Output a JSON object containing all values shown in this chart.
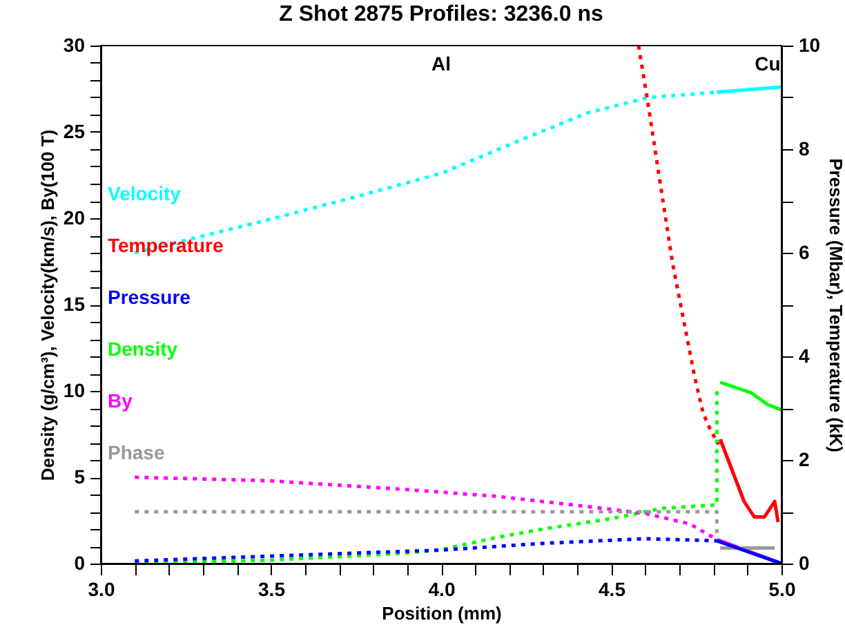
{
  "chart_data": {
    "type": "line",
    "title": "Z Shot 2875 Profiles: 3236.0 ns",
    "xlabel": "Position (mm)",
    "ylabel": "Density (g/cm³), Velocity(km/s), By(100 T)",
    "y2label": "Pressure (Mbar), Temperature (kK)",
    "xlim": [
      3.0,
      5.0
    ],
    "xticks": [
      {
        "value": 3,
        "label": "3.0"
      },
      {
        "value": 3.1,
        "label": null
      },
      {
        "value": 3.2,
        "label": null
      },
      {
        "value": 3.3,
        "label": null
      },
      {
        "value": 3.4,
        "label": null
      },
      {
        "value": 3.5,
        "label": "3.5"
      },
      {
        "value": 3.6,
        "label": null
      },
      {
        "value": 3.7,
        "label": null
      },
      {
        "value": 3.8,
        "label": null
      },
      {
        "value": 3.9,
        "label": null
      },
      {
        "value": 4,
        "label": "4.0"
      },
      {
        "value": 4.1,
        "label": null
      },
      {
        "value": 4.2,
        "label": null
      },
      {
        "value": 4.3,
        "label": null
      },
      {
        "value": 4.4,
        "label": null
      },
      {
        "value": 4.5,
        "label": "4.5"
      },
      {
        "value": 4.6,
        "label": null
      },
      {
        "value": 4.7,
        "label": null
      },
      {
        "value": 4.8,
        "label": null
      },
      {
        "value": 4.9,
        "label": null
      },
      {
        "value": 5,
        "label": "5.0"
      }
    ],
    "ylim": [
      0,
      30
    ],
    "yticks": [
      0,
      {
        "value": 1,
        "label": null
      },
      {
        "value": 2,
        "label": null
      },
      {
        "value": 3,
        "label": null
      },
      {
        "value": 4,
        "label": null
      },
      5,
      {
        "value": 6,
        "label": null
      },
      {
        "value": 7,
        "label": null
      },
      {
        "value": 8,
        "label": null
      },
      {
        "value": 9,
        "label": null
      },
      10,
      {
        "value": 11,
        "label": null
      },
      {
        "value": 12,
        "label": null
      },
      {
        "value": 13,
        "label": null
      },
      {
        "value": 14,
        "label": null
      },
      15,
      {
        "value": 16,
        "label": null
      },
      {
        "value": 17,
        "label": null
      },
      {
        "value": 18,
        "label": null
      },
      {
        "value": 19,
        "label": null
      },
      20,
      {
        "value": 21,
        "label": null
      },
      {
        "value": 22,
        "label": null
      },
      {
        "value": 23,
        "label": null
      },
      {
        "value": 24,
        "label": null
      },
      25,
      {
        "value": 26,
        "label": null
      },
      {
        "value": 27,
        "label": null
      },
      {
        "value": 28,
        "label": null
      },
      {
        "value": 29,
        "label": null
      },
      30
    ],
    "y2lim": [
      0,
      10
    ],
    "y2ticks": [
      0,
      {
        "value": 1,
        "label": null
      },
      2,
      {
        "value": 3,
        "label": null
      },
      4,
      {
        "value": 5,
        "label": null
      },
      6,
      {
        "value": 7,
        "label": null
      },
      8,
      {
        "value": 9,
        "label": null
      },
      10
    ],
    "grid": false,
    "legend": "left",
    "annotations": [
      "Al",
      "Cu"
    ],
    "series": [
      {
        "name": "Velocity",
        "color": "#00ffff",
        "line_style": "dotted",
        "x": [
          3.1,
          3.49,
          3.76,
          4.0,
          4.23,
          4.43,
          4.61,
          4.81
        ],
        "values": [
          18.0,
          19.9,
          21.3,
          22.6,
          24.5,
          26.1,
          27.0,
          27.3
        ]
      },
      {
        "color": "#00ffff",
        "line_style": "solid",
        "x": [
          4.81,
          5.0
        ],
        "values": [
          27.3,
          27.6
        ]
      },
      {
        "name": "Temperature",
        "color": "#ff0000",
        "line_style": "dotted",
        "axis": "y2",
        "x": [
          4.58,
          4.605,
          4.64,
          4.68,
          4.745,
          4.77,
          4.79,
          4.815
        ],
        "values": [
          10.0,
          9.0,
          7.5,
          5.8,
          3.6,
          2.9,
          2.6,
          2.3
        ]
      },
      {
        "color": "#ff0000",
        "line_style": "solid",
        "axis": "y2",
        "x": [
          4.82,
          4.89,
          4.92,
          4.95,
          4.98,
          4.99
        ],
        "values": [
          2.4,
          1.2,
          0.9,
          0.9,
          1.2,
          0.8
        ]
      },
      {
        "name": "Pressure",
        "color": "#0000ff",
        "line_style": "dotted",
        "axis": "y2",
        "x": [
          3.1,
          4.0,
          4.3,
          4.6,
          4.81
        ],
        "values": [
          0.05,
          0.26,
          0.39,
          0.48,
          0.44
        ]
      },
      {
        "color": "#0000ff",
        "line_style": "solid",
        "axis": "y2",
        "x": [
          4.81,
          5.0
        ],
        "values": [
          0.44,
          0.0
        ]
      },
      {
        "name": "Density",
        "color": "#00ff00",
        "line_style": "dotted",
        "x": [
          3.1,
          3.5,
          3.89,
          4.0,
          4.16,
          4.3,
          4.5,
          4.65,
          4.81,
          4.81
        ],
        "values": [
          0.0,
          0.2,
          0.6,
          0.8,
          1.5,
          2.0,
          2.6,
          3.2,
          3.4,
          10.3
        ]
      },
      {
        "color": "#00ff00",
        "line_style": "solid",
        "x": [
          4.82,
          4.91,
          4.96,
          5.0
        ],
        "values": [
          10.5,
          9.9,
          9.2,
          8.9
        ]
      },
      {
        "name": "By",
        "color": "#ff00ff",
        "line_style": "dotted",
        "x": [
          3.1,
          3.49,
          3.89,
          4.16,
          4.43,
          4.6,
          4.73,
          4.81
        ],
        "values": [
          5.0,
          4.8,
          4.3,
          3.9,
          3.3,
          2.9,
          2.3,
          1.4
        ]
      },
      {
        "color": "#ff00ff",
        "line_style": "solid",
        "x": [
          4.81,
          5.0
        ],
        "values": [
          1.4,
          0.0
        ]
      },
      {
        "name": "Phase",
        "color": "#999999",
        "line_style": "dotted",
        "x": [
          3.1,
          4.81,
          4.81
        ],
        "values": [
          3.0,
          3.0,
          0.9
        ]
      },
      {
        "color": "#999999",
        "line_style": "solid",
        "x": [
          4.82,
          4.98
        ],
        "values": [
          0.9,
          0.9
        ]
      }
    ]
  }
}
